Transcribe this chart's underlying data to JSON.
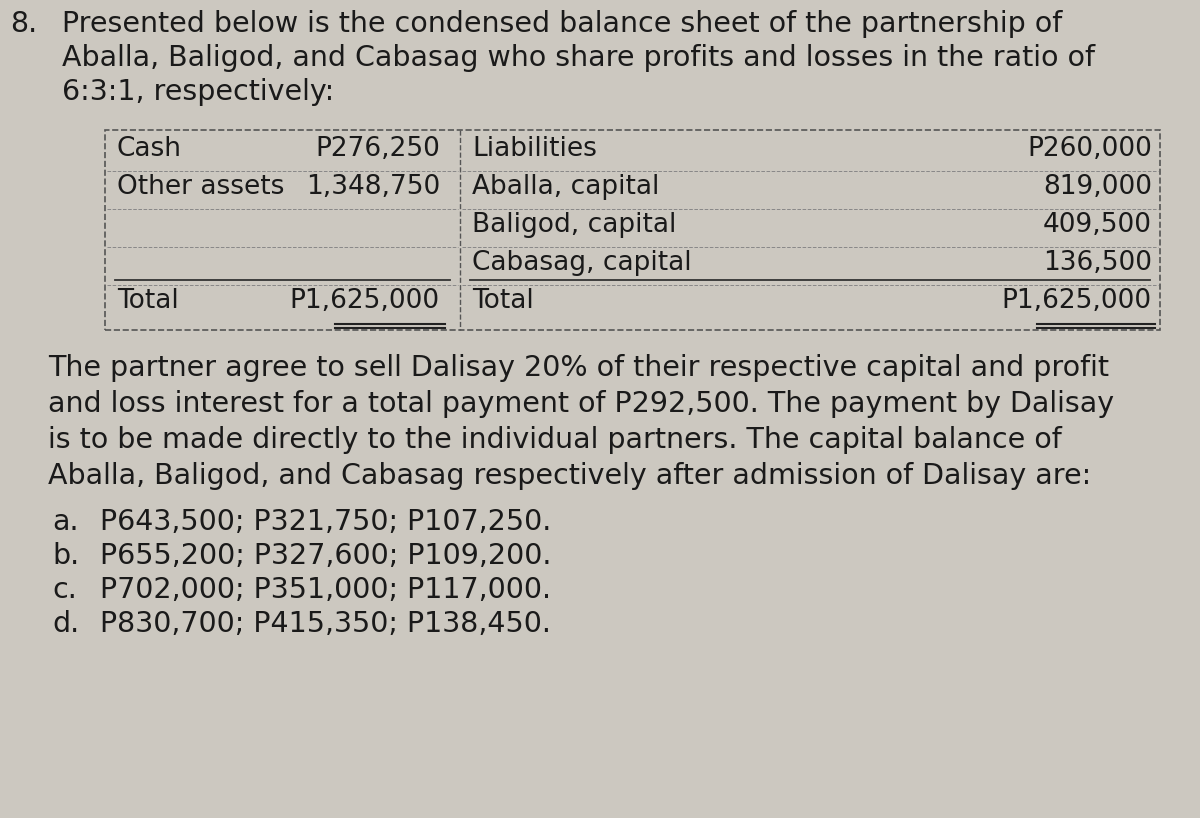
{
  "bg_color": "#ccc8c0",
  "text_color": "#1a1a1a",
  "question_number": "8.",
  "intro_lines": [
    "Presented below is the condensed balance sheet of the partnership of",
    "Aballa, Baligod, and Cabasag who share profits and losses in the ratio of",
    "6:3:1, respectively:"
  ],
  "table": {
    "left_col": [
      {
        "label": "Cash",
        "value": "P276,250"
      },
      {
        "label": "Other assets",
        "value": "1,348,750"
      },
      {
        "label": "",
        "value": ""
      },
      {
        "label": "",
        "value": ""
      },
      {
        "label": "Total",
        "value": "P1,625,000"
      }
    ],
    "right_col": [
      {
        "label": "Liabilities",
        "value": "P260,000"
      },
      {
        "label": "Aballa, capital",
        "value": "819,000"
      },
      {
        "label": "Baligod, capital",
        "value": "409,500"
      },
      {
        "label": "Cabasag, capital",
        "value": "136,500"
      },
      {
        "label": "Total",
        "value": "P1,625,000"
      }
    ]
  },
  "body_lines": [
    "The partner agree to sell Dalisay 20% of their respective capital and profit",
    "and loss interest for a total payment of P292,500. The payment by Dalisay",
    "is to be made directly to the individual partners. The capital balance of",
    "Aballa, Baligod, and Cabasag respectively after admission of Dalisay are:"
  ],
  "choices": [
    [
      "a.",
      "P643,500; P321,750; P107,250."
    ],
    [
      "b.",
      "P655,200; P327,600; P109,200."
    ],
    [
      "c.",
      "P702,000; P351,000; P117,000."
    ],
    [
      "d.",
      "P830,700; P415,350; P138,450."
    ]
  ],
  "intro_fontsize": 20.5,
  "table_fontsize": 19.0,
  "body_fontsize": 20.5,
  "choice_fontsize": 20.5
}
